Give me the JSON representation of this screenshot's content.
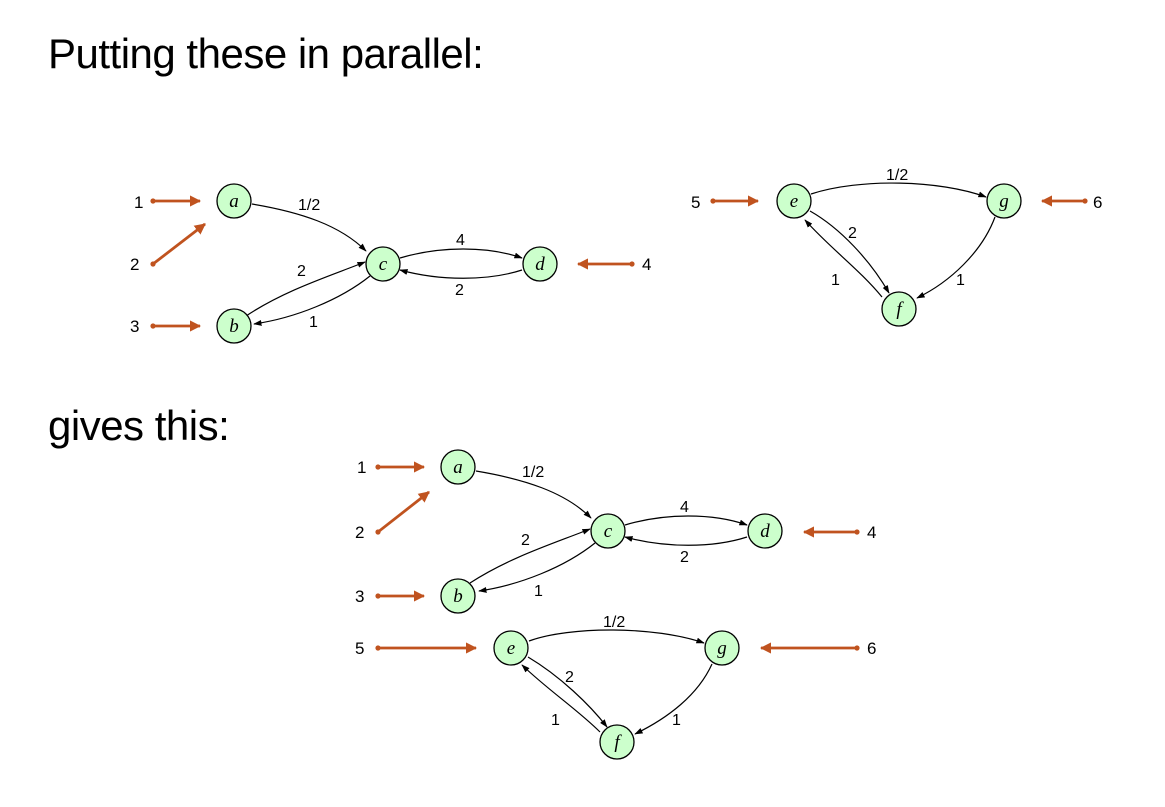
{
  "headings": {
    "top": "Putting these in parallel:",
    "bottom": "gives this:"
  },
  "colors": {
    "node_fill": "#ccffcc",
    "port_arrow": "#c0531f",
    "edge": "#000000"
  },
  "diagrams": {
    "left": {
      "nodes": {
        "a": "a",
        "b": "b",
        "c": "c",
        "d": "d"
      },
      "edges": {
        "a_c": "1/2",
        "c_d": "4",
        "d_c": "2",
        "b_c": "2",
        "c_b": "1"
      },
      "ports": {
        "p1": "1",
        "p2": "2",
        "p3": "3",
        "p4": "4"
      }
    },
    "right": {
      "nodes": {
        "e": "e",
        "f": "f",
        "g": "g"
      },
      "edges": {
        "e_g": "1/2",
        "e_f": "2",
        "f_e": "1",
        "g_f": "1"
      },
      "ports": {
        "p5": "5",
        "p6": "6"
      }
    },
    "combined": {
      "nodes": {
        "a": "a",
        "b": "b",
        "c": "c",
        "d": "d",
        "e": "e",
        "f": "f",
        "g": "g"
      },
      "edges": {
        "a_c": "1/2",
        "c_d": "4",
        "d_c": "2",
        "b_c": "2",
        "c_b": "1",
        "e_g": "1/2",
        "e_f": "2",
        "f_e": "1",
        "g_f": "1"
      },
      "ports": {
        "p1": "1",
        "p2": "2",
        "p3": "3",
        "p4": "4",
        "p5": "5",
        "p6": "6"
      }
    }
  }
}
